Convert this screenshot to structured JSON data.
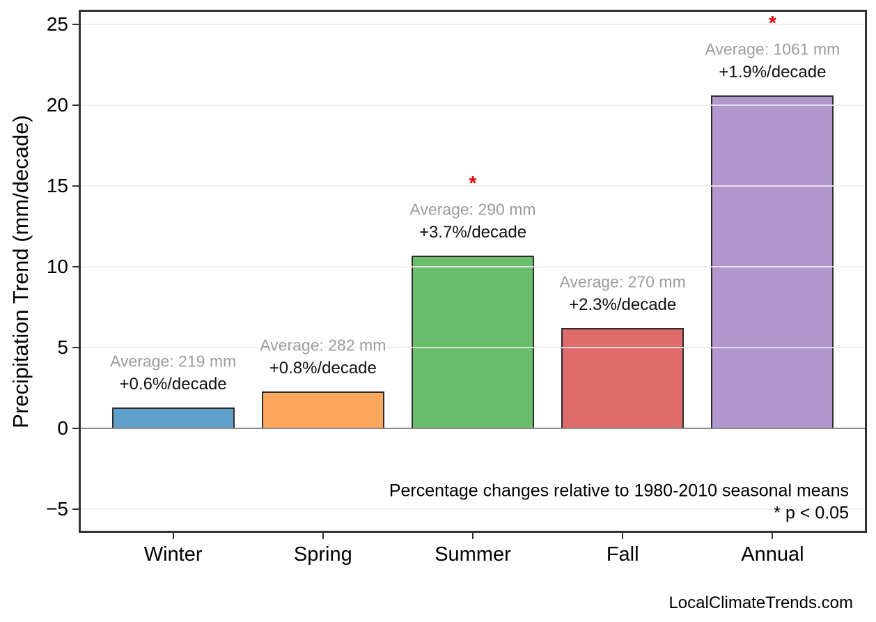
{
  "page": {
    "background": "#ffffff",
    "watermark": "LocalClimateTrends.com"
  },
  "chart_data": {
    "type": "bar",
    "title": "",
    "xlabel": "",
    "ylabel": "Precipitation Trend (mm/decade)",
    "categories": [
      "Winter",
      "Spring",
      "Summer",
      "Fall",
      "Annual"
    ],
    "values": [
      1.3,
      2.3,
      10.7,
      6.2,
      20.6
    ],
    "bar_colors": [
      "#5E9FCC",
      "#FCA85C",
      "#6ABE6B",
      "#E06B6B",
      "#B297CF"
    ],
    "bar_edge_color": "#2d2d2d",
    "annotations": [
      {
        "average": "Average: 219 mm",
        "change": "+0.6%/decade",
        "significant": false
      },
      {
        "average": "Average: 282 mm",
        "change": "+0.8%/decade",
        "significant": false
      },
      {
        "average": "Average: 290 mm",
        "change": "+3.7%/decade",
        "significant": true
      },
      {
        "average": "Average: 270 mm",
        "change": "+2.3%/decade",
        "significant": false
      },
      {
        "average": "Average: 1061 mm",
        "change": "+1.9%/decade",
        "significant": true
      }
    ],
    "significance_marker": "*",
    "yticks": [
      -5,
      0,
      5,
      10,
      15,
      20,
      25
    ],
    "ylim": [
      -6.5,
      25.9
    ],
    "grid": true,
    "legend_position": "none",
    "footnote": "Percentage changes relative to 1980-2010 seasonal means",
    "significance_note": "* p < 0.05",
    "colors": {
      "annotation_average": "#9c9c9c",
      "annotation_change": "#111111",
      "significance": "#e40000",
      "gridline": "#ececec",
      "zero_line": "#8a8a8a",
      "axis_border": "#333333"
    }
  }
}
